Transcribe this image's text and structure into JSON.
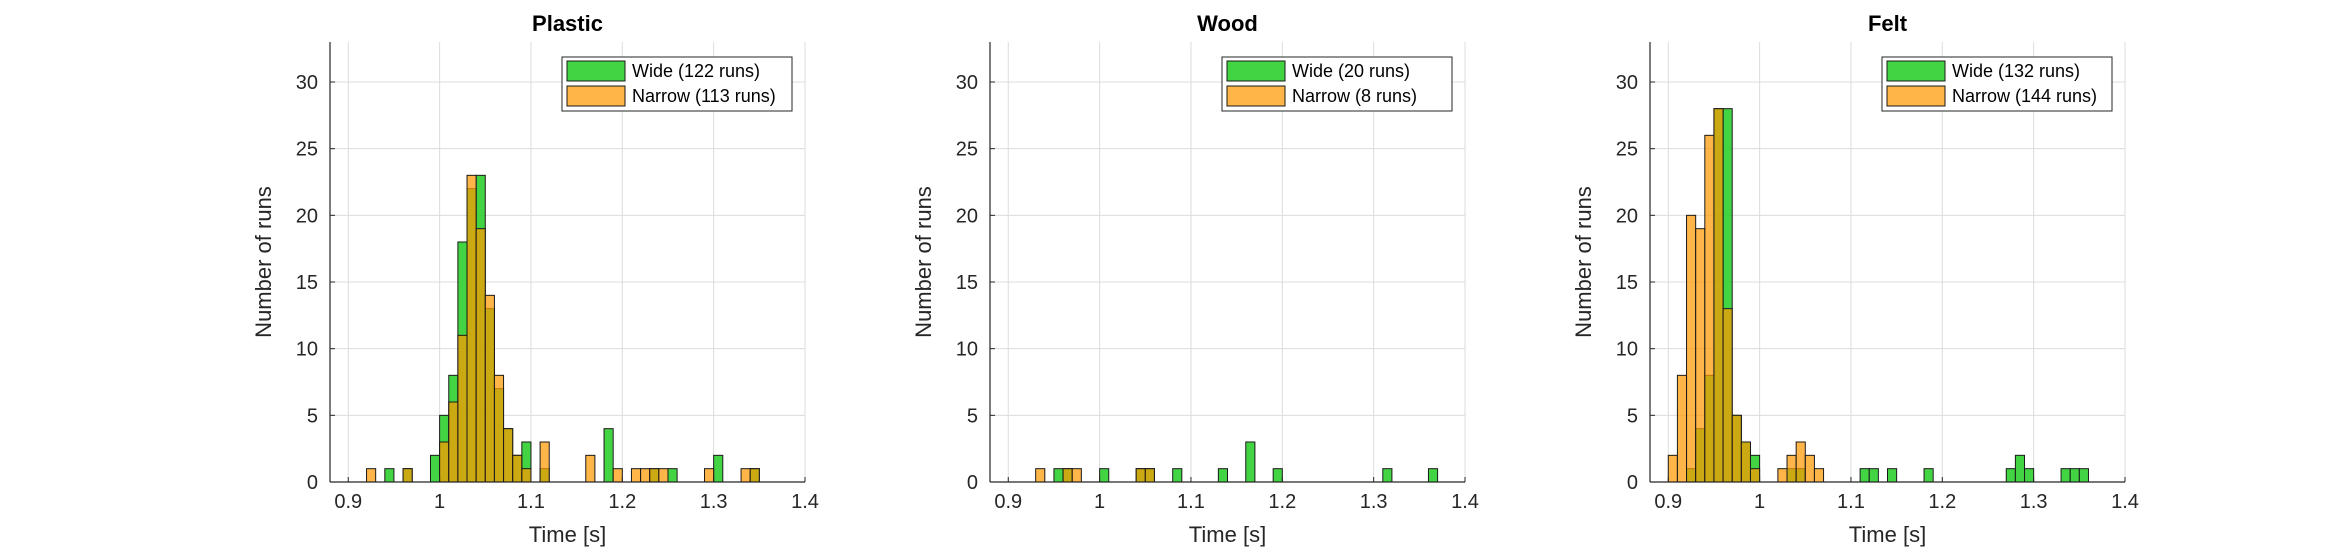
{
  "colors": {
    "wide": "#22cc22",
    "narrow": "#ff9900",
    "edge": "#1a1a1a",
    "grid": "#dcdcdc",
    "axis": "#262626"
  },
  "chart_data": [
    {
      "type": "bar",
      "title": "Plastic",
      "xlabel": "Time [s]",
      "ylabel": "Number of runs",
      "xlim": [
        0.88,
        1.4
      ],
      "ylim": [
        0,
        33
      ],
      "xticks": [
        0.9,
        1.0,
        1.1,
        1.2,
        1.3,
        1.4
      ],
      "xtick_labels": [
        "0.9",
        "1",
        "1.1",
        "1.2",
        "1.3",
        "1.4"
      ],
      "yticks": [
        0,
        5,
        10,
        15,
        20,
        25,
        30
      ],
      "ytick_labels": [
        "0",
        "5",
        "10",
        "15",
        "20",
        "25",
        "30"
      ],
      "grid": true,
      "legend": "top-right",
      "bin_width": 0.01,
      "series": [
        {
          "name": "Wide (122 runs)",
          "bins": [
            {
              "x0": 0.94,
              "count": 1
            },
            {
              "x0": 0.96,
              "count": 1
            },
            {
              "x0": 0.99,
              "count": 2
            },
            {
              "x0": 1.0,
              "count": 5
            },
            {
              "x0": 1.01,
              "count": 8
            },
            {
              "x0": 1.02,
              "count": 18
            },
            {
              "x0": 1.03,
              "count": 22
            },
            {
              "x0": 1.04,
              "count": 23
            },
            {
              "x0": 1.05,
              "count": 13
            },
            {
              "x0": 1.06,
              "count": 7
            },
            {
              "x0": 1.07,
              "count": 4
            },
            {
              "x0": 1.08,
              "count": 2
            },
            {
              "x0": 1.09,
              "count": 3
            },
            {
              "x0": 1.11,
              "count": 1
            },
            {
              "x0": 1.18,
              "count": 4
            },
            {
              "x0": 1.23,
              "count": 1
            },
            {
              "x0": 1.25,
              "count": 1
            },
            {
              "x0": 1.3,
              "count": 2
            },
            {
              "x0": 1.34,
              "count": 1
            }
          ]
        },
        {
          "name": "Narrow (113 runs)",
          "bins": [
            {
              "x0": 0.92,
              "count": 1
            },
            {
              "x0": 0.96,
              "count": 1
            },
            {
              "x0": 1.0,
              "count": 3
            },
            {
              "x0": 1.01,
              "count": 6
            },
            {
              "x0": 1.02,
              "count": 11
            },
            {
              "x0": 1.03,
              "count": 23
            },
            {
              "x0": 1.04,
              "count": 19
            },
            {
              "x0": 1.05,
              "count": 14
            },
            {
              "x0": 1.06,
              "count": 8
            },
            {
              "x0": 1.07,
              "count": 4
            },
            {
              "x0": 1.08,
              "count": 2
            },
            {
              "x0": 1.09,
              "count": 1
            },
            {
              "x0": 1.11,
              "count": 3
            },
            {
              "x0": 1.16,
              "count": 2
            },
            {
              "x0": 1.19,
              "count": 1
            },
            {
              "x0": 1.21,
              "count": 1
            },
            {
              "x0": 1.22,
              "count": 1
            },
            {
              "x0": 1.23,
              "count": 1
            },
            {
              "x0": 1.24,
              "count": 1
            },
            {
              "x0": 1.29,
              "count": 1
            },
            {
              "x0": 1.33,
              "count": 1
            },
            {
              "x0": 1.34,
              "count": 1
            }
          ]
        }
      ]
    },
    {
      "type": "bar",
      "title": "Wood",
      "xlabel": "Time [s]",
      "ylabel": "Number of runs",
      "xlim": [
        0.88,
        1.4
      ],
      "ylim": [
        0,
        33
      ],
      "xticks": [
        0.9,
        1.0,
        1.1,
        1.2,
        1.3,
        1.4
      ],
      "xtick_labels": [
        "0.9",
        "1",
        "1.1",
        "1.2",
        "1.3",
        "1.4"
      ],
      "yticks": [
        0,
        5,
        10,
        15,
        20,
        25,
        30
      ],
      "ytick_labels": [
        "0",
        "5",
        "10",
        "15",
        "20",
        "25",
        "30"
      ],
      "grid": true,
      "legend": "top-right",
      "bin_width": 0.01,
      "series": [
        {
          "name": "Wide (20 runs)",
          "bins": [
            {
              "x0": 0.95,
              "count": 1
            },
            {
              "x0": 0.96,
              "count": 1
            },
            {
              "x0": 1.0,
              "count": 1
            },
            {
              "x0": 1.04,
              "count": 1
            },
            {
              "x0": 1.05,
              "count": 1
            },
            {
              "x0": 1.08,
              "count": 1
            },
            {
              "x0": 1.13,
              "count": 1
            },
            {
              "x0": 1.16,
              "count": 3
            },
            {
              "x0": 1.19,
              "count": 1
            },
            {
              "x0": 1.31,
              "count": 1
            },
            {
              "x0": 1.36,
              "count": 1
            }
          ]
        },
        {
          "name": "Narrow (8 runs)",
          "bins": [
            {
              "x0": 0.93,
              "count": 1
            },
            {
              "x0": 0.96,
              "count": 1
            },
            {
              "x0": 0.97,
              "count": 1
            },
            {
              "x0": 1.04,
              "count": 1
            },
            {
              "x0": 1.05,
              "count": 1
            }
          ]
        }
      ]
    },
    {
      "type": "bar",
      "title": "Felt",
      "xlabel": "Time [s]",
      "ylabel": "Number of runs",
      "xlim": [
        0.88,
        1.4
      ],
      "ylim": [
        0,
        33
      ],
      "xticks": [
        0.9,
        1.0,
        1.1,
        1.2,
        1.3,
        1.4
      ],
      "xtick_labels": [
        "0.9",
        "1",
        "1.1",
        "1.2",
        "1.3",
        "1.4"
      ],
      "yticks": [
        0,
        5,
        10,
        15,
        20,
        25,
        30
      ],
      "ytick_labels": [
        "0",
        "5",
        "10",
        "15",
        "20",
        "25",
        "30"
      ],
      "grid": true,
      "legend": "top-right",
      "bin_width": 0.01,
      "series": [
        {
          "name": "Wide (132 runs)",
          "bins": [
            {
              "x0": 0.92,
              "count": 1
            },
            {
              "x0": 0.93,
              "count": 4
            },
            {
              "x0": 0.94,
              "count": 8
            },
            {
              "x0": 0.95,
              "count": 28
            },
            {
              "x0": 0.96,
              "count": 28
            },
            {
              "x0": 0.97,
              "count": 5
            },
            {
              "x0": 0.98,
              "count": 3
            },
            {
              "x0": 0.99,
              "count": 2
            },
            {
              "x0": 1.03,
              "count": 1
            },
            {
              "x0": 1.04,
              "count": 1
            },
            {
              "x0": 1.11,
              "count": 1
            },
            {
              "x0": 1.12,
              "count": 1
            },
            {
              "x0": 1.14,
              "count": 1
            },
            {
              "x0": 1.18,
              "count": 1
            },
            {
              "x0": 1.27,
              "count": 1
            },
            {
              "x0": 1.28,
              "count": 2
            },
            {
              "x0": 1.29,
              "count": 1
            },
            {
              "x0": 1.33,
              "count": 1
            },
            {
              "x0": 1.34,
              "count": 1
            },
            {
              "x0": 1.35,
              "count": 1
            }
          ]
        },
        {
          "name": "Narrow (144 runs)",
          "bins": [
            {
              "x0": 0.9,
              "count": 2
            },
            {
              "x0": 0.91,
              "count": 8
            },
            {
              "x0": 0.92,
              "count": 20
            },
            {
              "x0": 0.93,
              "count": 19
            },
            {
              "x0": 0.94,
              "count": 26
            },
            {
              "x0": 0.95,
              "count": 28
            },
            {
              "x0": 0.96,
              "count": 13
            },
            {
              "x0": 0.97,
              "count": 5
            },
            {
              "x0": 0.98,
              "count": 3
            },
            {
              "x0": 0.99,
              "count": 1
            },
            {
              "x0": 1.02,
              "count": 1
            },
            {
              "x0": 1.03,
              "count": 2
            },
            {
              "x0": 1.04,
              "count": 3
            },
            {
              "x0": 1.05,
              "count": 2
            },
            {
              "x0": 1.06,
              "count": 1
            }
          ]
        }
      ]
    }
  ]
}
